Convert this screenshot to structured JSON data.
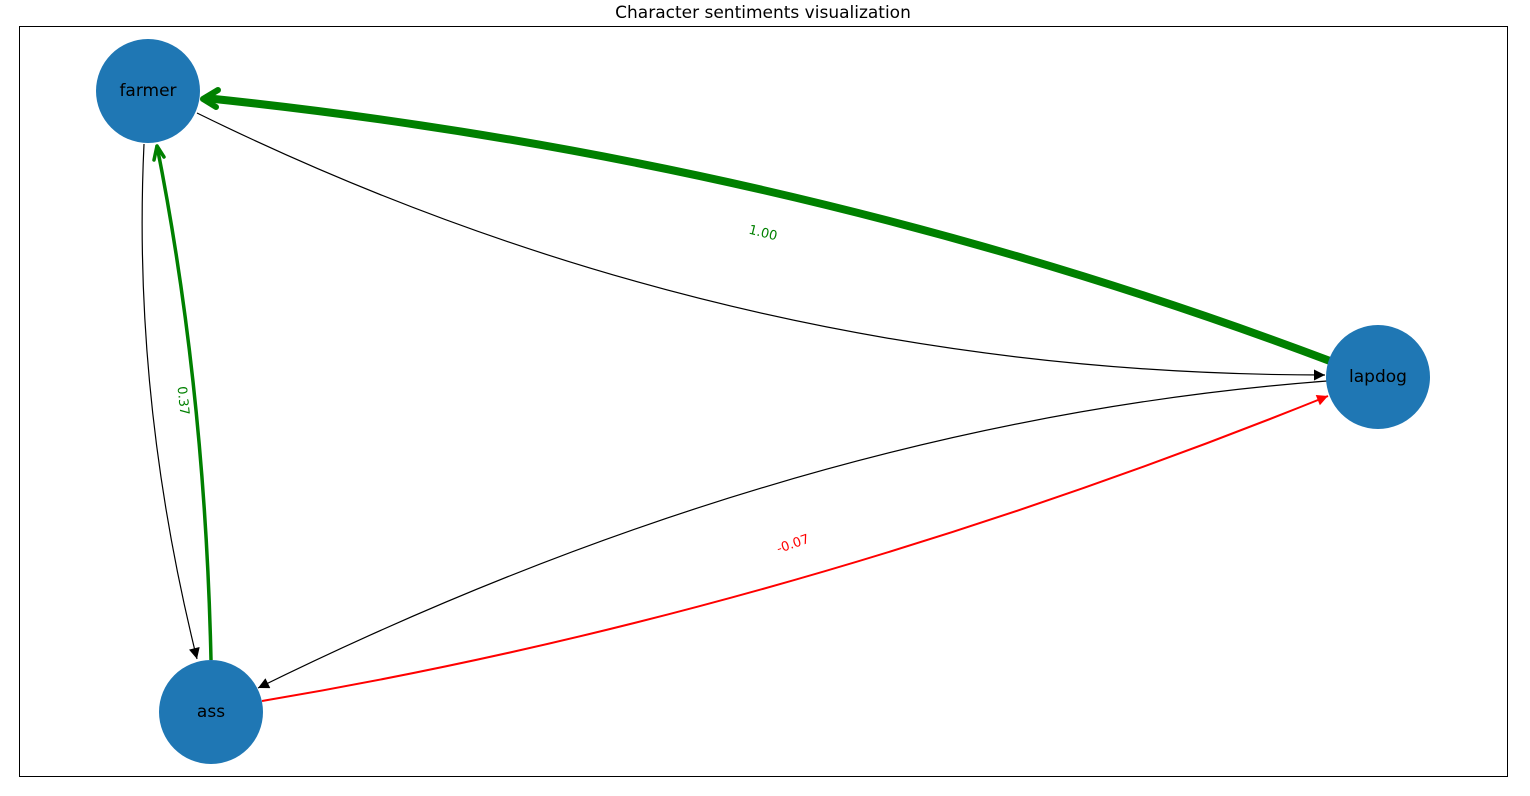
{
  "title": "Character sentiments visualization",
  "colors": {
    "node": "#1f77b4",
    "positive": "#008000",
    "negative": "#ff0000",
    "neutral": "#000000",
    "frame": "#000000"
  },
  "nodes": [
    {
      "id": "farmer",
      "label": "farmer"
    },
    {
      "id": "lapdog",
      "label": "lapdog"
    },
    {
      "id": "ass",
      "label": "ass"
    }
  ],
  "edges": [
    {
      "from": "lapdog",
      "to": "farmer",
      "weight": 1.0,
      "label": "1.00",
      "sentiment": "positive"
    },
    {
      "from": "ass",
      "to": "farmer",
      "weight": 0.37,
      "label": "0.37",
      "sentiment": "positive"
    },
    {
      "from": "ass",
      "to": "lapdog",
      "weight": -0.07,
      "label": "-0.07",
      "sentiment": "negative"
    },
    {
      "from": "farmer",
      "to": "lapdog",
      "label": "",
      "sentiment": "neutral"
    },
    {
      "from": "farmer",
      "to": "ass",
      "label": "",
      "sentiment": "neutral"
    },
    {
      "from": "lapdog",
      "to": "ass",
      "label": "",
      "sentiment": "neutral"
    }
  ]
}
